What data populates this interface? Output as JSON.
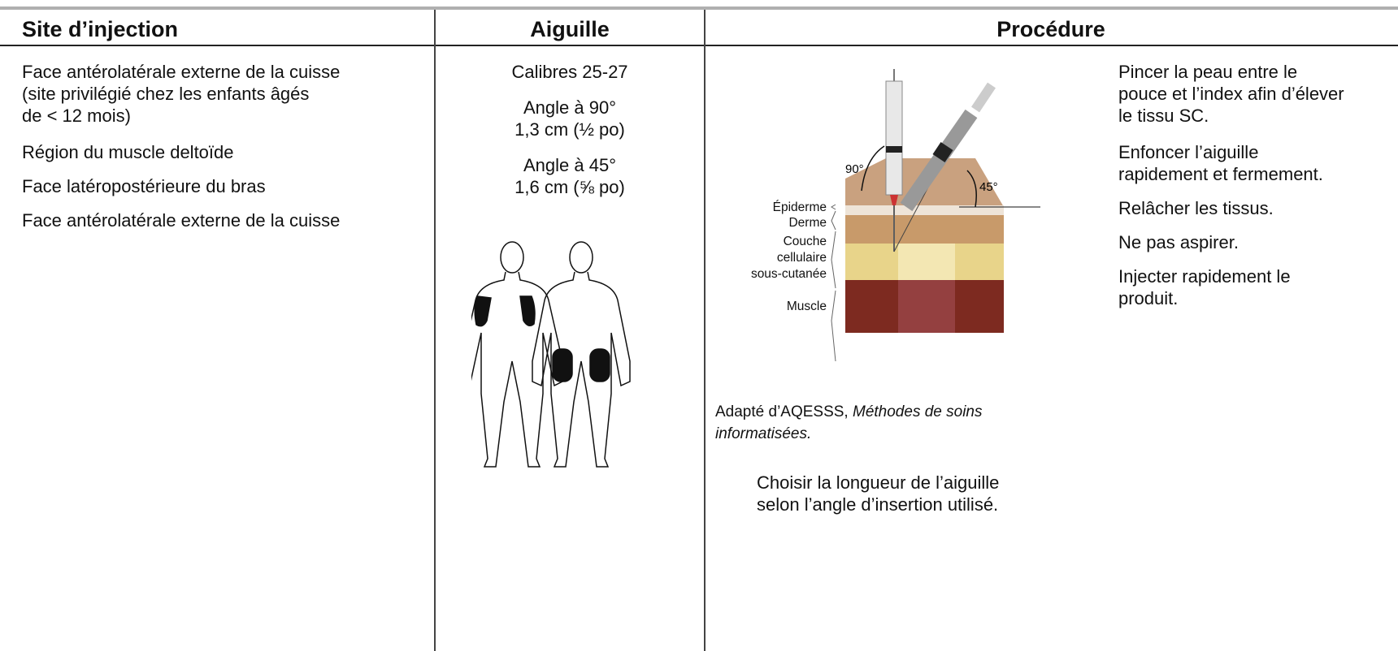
{
  "header": {
    "columns": [
      "Site d’injection",
      "Aiguille",
      "Procédure"
    ]
  },
  "sites": [
    [
      "Face antérolatérale externe de la cuisse",
      "(site privilégié chez les enfants âgés",
      "de < 12 mois)"
    ],
    [
      "Région du muscle deltoïde"
    ],
    [
      "Face latéropostérieure du bras"
    ],
    [
      "Face antérolatérale externe de la cuisse"
    ]
  ],
  "needle": {
    "gauge": "Calibres 25-27",
    "options": [
      {
        "angle": "Angle à 90°",
        "length": "1,3 cm (½ po)"
      },
      {
        "angle": "Angle à 45°",
        "length": "1,6 cm (⅝ po)"
      }
    ]
  },
  "diagram": {
    "angles": [
      "90°",
      "45°"
    ],
    "layers": [
      [
        "Épiderme"
      ],
      [
        "Derme"
      ],
      [
        "Couche",
        "cellulaire",
        "sous-cutanée"
      ],
      [
        "Muscle"
      ]
    ]
  },
  "credit": {
    "text": "Adapté d’AQESSS, ",
    "source": "Méthodes de soins informatisées."
  },
  "note": [
    "Choisir la longueur de l’aiguille",
    "selon l’angle d’insertion utilisé."
  ],
  "steps": [
    [
      "Pincer la peau entre le",
      "pouce et l’index afin d’élever",
      "le tissu SC."
    ],
    [
      "Enfoncer l’aiguille",
      "rapidement et fermement."
    ],
    [
      "Relâcher les tissus."
    ],
    [
      "Ne pas aspirer."
    ],
    [
      "Injecter rapidement le",
      "produit."
    ]
  ]
}
